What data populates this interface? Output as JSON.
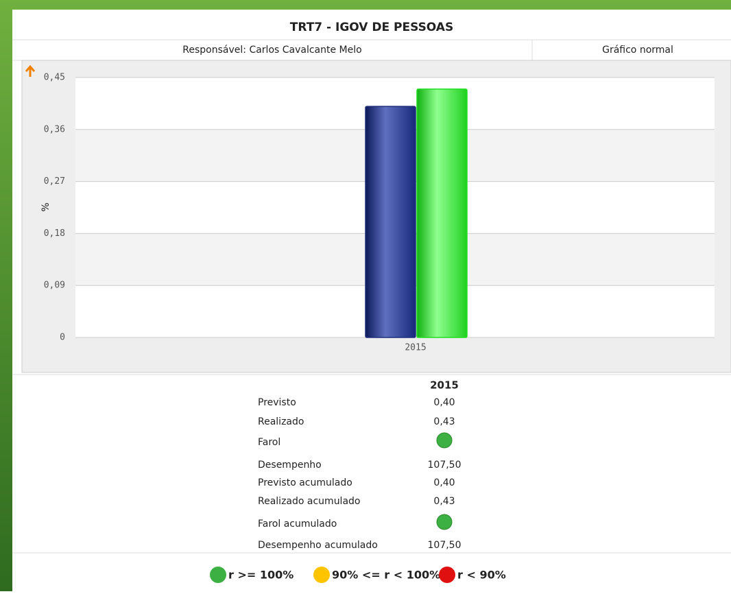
{
  "header": {
    "title": "TRT7 - IGOV DE PESSOAS",
    "responsible": "Responsável: Carlos Cavalcante Melo",
    "mode": "Gráfico normal"
  },
  "chart_data": {
    "type": "bar",
    "ylabel": "%",
    "categories": [
      "2015"
    ],
    "series": [
      {
        "color": "#1f2f7a",
        "values": [
          0.4
        ]
      },
      {
        "color": "#22dd22",
        "values": [
          0.43
        ]
      }
    ],
    "ylim": [
      0,
      0.45
    ],
    "yticks": [
      0,
      {
        "value": 0.09,
        "label": "0,09"
      },
      {
        "value": 0.18,
        "label": "0,18"
      },
      {
        "value": 0.27,
        "label": "0,27"
      },
      {
        "value": 0.36,
        "label": "0,36"
      },
      {
        "value": 0.45,
        "label": "0,45"
      }
    ],
    "grid": true
  },
  "table": {
    "header": "2015",
    "rows": [
      {
        "label": "Previsto",
        "value": "0,40"
      },
      {
        "label": "Realizado",
        "value": "0,43"
      },
      {
        "label": "Farol",
        "color": "#3cb043"
      },
      {
        "label": "Desempenho",
        "value": "107,50"
      },
      {
        "label": "Previsto acumulado",
        "value": "0,40"
      },
      {
        "label": "Realizado acumulado",
        "value": "0,43"
      },
      {
        "label": "Farol acumulado",
        "color": "#3cb043"
      },
      {
        "label": "Desempenho acumulado",
        "value": "107,50"
      }
    ]
  },
  "legend": [
    {
      "text": "r >= 100%",
      "color": "#3cb043"
    },
    {
      "text": "90% <= r < 100%",
      "color": "#ffc400"
    },
    {
      "text": "r < 90%",
      "color": "#e01010"
    }
  ]
}
